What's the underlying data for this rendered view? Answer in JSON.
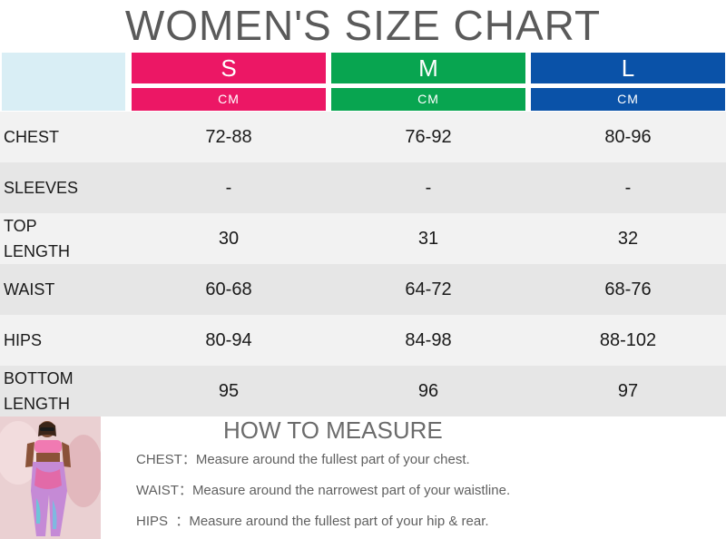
{
  "title": "WOMEN'S SIZE CHART",
  "sizes": [
    {
      "label": "S",
      "unit": "CM",
      "color": "#ec1765"
    },
    {
      "label": "M",
      "unit": "CM",
      "color": "#08a550"
    },
    {
      "label": "L",
      "unit": "CM",
      "color": "#0a52a8"
    }
  ],
  "rows": [
    {
      "label": "CHEST",
      "values": [
        "72-88",
        "76-92",
        "80-96"
      ]
    },
    {
      "label": "SLEEVES",
      "values": [
        "-",
        "-",
        "-"
      ]
    },
    {
      "label": "TOP\nLENGTH",
      "values": [
        "30",
        "31",
        "32"
      ]
    },
    {
      "label": "WAIST",
      "values": [
        "60-68",
        "64-72",
        "68-76"
      ]
    },
    {
      "label": "HIPS",
      "values": [
        "80-94",
        "84-98",
        "88-102"
      ]
    },
    {
      "label": "BOTTOM\nLENGTH",
      "values": [
        "95",
        "96",
        "97"
      ]
    }
  ],
  "how_to_measure": {
    "title": "HOW TO MEASURE",
    "lines": [
      "CHEST：Measure around the fullest part of your chest.",
      "WAIST：Measure around the narrowest part of your waistline.",
      "HIPS  ：Measure around the fullest part of your hip & rear."
    ]
  }
}
